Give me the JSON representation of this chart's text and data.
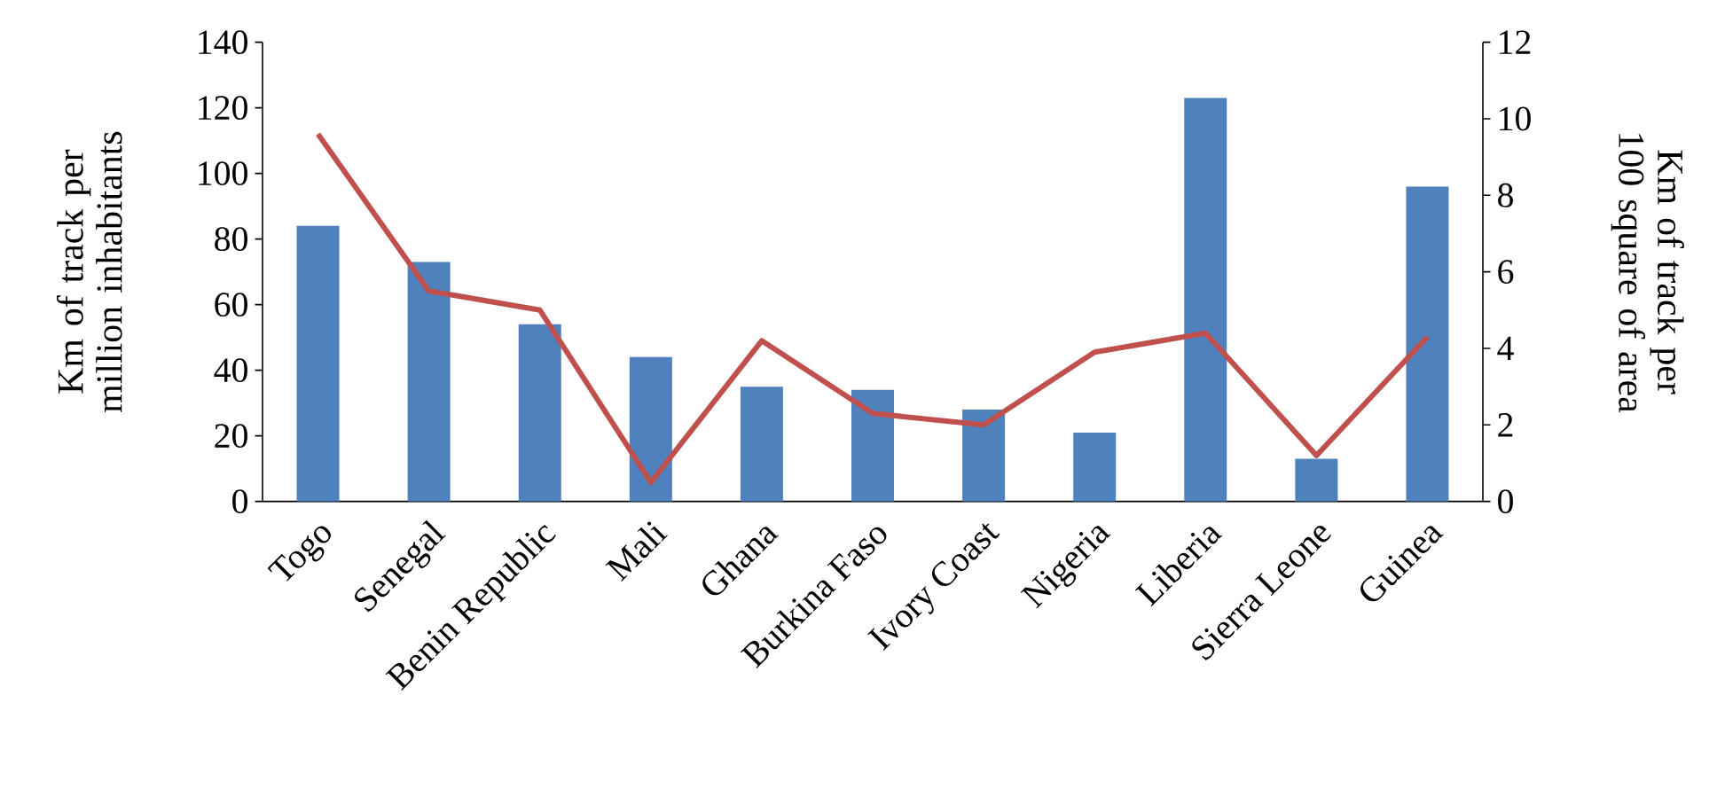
{
  "chart_data": {
    "type": "bar",
    "categories": [
      "Togo",
      "Senegal",
      "Benin Republic",
      "Mali",
      "Ghana",
      "Burkina Faso",
      "Ivory Coast",
      "Nigeria",
      "Liberia",
      "Sierra Leone",
      "Guinea"
    ],
    "ylabel": "Km of track per million inhabitants",
    "y2label": "Km of track per 100 square of area",
    "ylim": [
      0,
      140
    ],
    "yticks": [
      0,
      20,
      40,
      60,
      80,
      100,
      120,
      140
    ],
    "y2lim": [
      0,
      12
    ],
    "y2ticks": [
      0,
      2,
      4,
      6,
      8,
      10,
      12
    ],
    "grid": false,
    "legend": false,
    "marker": "none",
    "line_style": "solid",
    "series": [
      {
        "color": "#4f81bd",
        "values": [
          84,
          73,
          54,
          44,
          35,
          34,
          28,
          21,
          123,
          13,
          96
        ]
      },
      {
        "type": "line",
        "axis": "y2",
        "color": "#c0504d",
        "values": [
          9.6,
          5.5,
          5.0,
          0.5,
          4.2,
          2.3,
          2.0,
          3.9,
          4.4,
          1.2,
          4.3
        ]
      }
    ]
  }
}
